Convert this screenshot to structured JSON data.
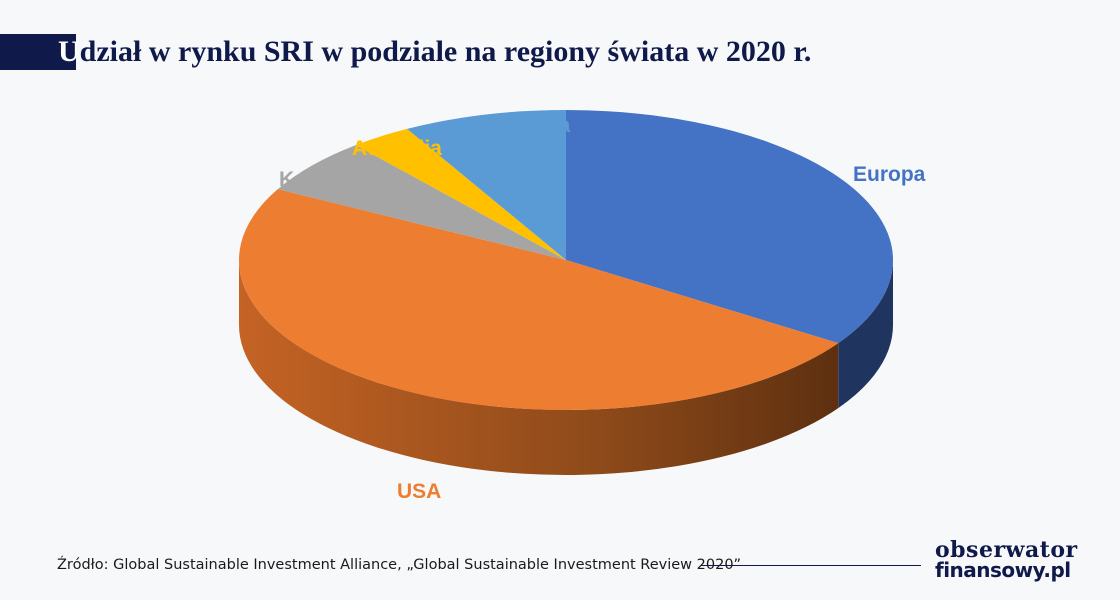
{
  "title": {
    "first_letter": "U",
    "rest": "dział w rynku SRI w podziale na regiony świata w 2020 r."
  },
  "chart_data": {
    "type": "pie",
    "title": "Udział w rynku SRI w podziale na regiony świata w 2020 r.",
    "style": "3d",
    "slices": [
      {
        "label": "Europa",
        "value": 34,
        "color": "#4472c4",
        "dark": "#1f3560"
      },
      {
        "label": "USA",
        "value": 48,
        "color": "#ed7d31",
        "dark": "#8a4716"
      },
      {
        "label": "Kanada",
        "value": 6,
        "color": "#a5a5a5",
        "dark": "#6f6f6f"
      },
      {
        "label": "Australia",
        "value": 3,
        "color": "#ffc000",
        "dark": "#a07900"
      },
      {
        "label": "Japonia",
        "value": 8,
        "color": "#5b9bd5",
        "dark": "#2e5f8c"
      }
    ],
    "label_colors": {
      "Europa": "#4472c4",
      "USA": "#ed7d31",
      "Kanada": "#a5a5a5",
      "Australia": "#ffc000",
      "Japonia": "#5b9bd5"
    }
  },
  "source": "Źródło: Global Sustainable Investment Alliance, „Global Sustainable Investment Review 2020”",
  "logo": {
    "line1": "obserwator",
    "line2": "finansowy.pl"
  }
}
